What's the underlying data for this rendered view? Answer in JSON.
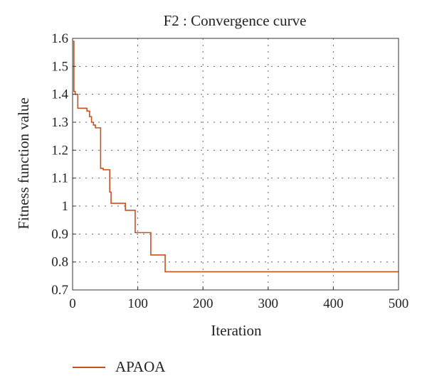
{
  "chart_data": {
    "type": "line",
    "title": "F2 : Convergence curve",
    "xlabel": "Iteration",
    "ylabel": "Fitness function value",
    "xlim": [
      0,
      500
    ],
    "ylim": [
      0.7,
      1.6
    ],
    "xticks": [
      0,
      100,
      200,
      300,
      400,
      500
    ],
    "yticks": [
      0.7,
      0.8,
      0.9,
      1,
      1.1,
      1.2,
      1.3,
      1.4,
      1.5,
      1.6
    ],
    "ytick_labels": [
      "0.7",
      "0.8",
      "0.9",
      "1",
      "1.1",
      "1.2",
      "1.3",
      "1.4",
      "1.5",
      "1.6"
    ],
    "grid": true,
    "legend_position": "bottom-left",
    "series": [
      {
        "name": "APAOA",
        "color": "#c8501e",
        "step": true,
        "x": [
          1,
          2,
          4,
          8,
          22,
          26,
          29,
          32,
          35,
          43,
          47,
          57,
          59,
          62,
          81,
          96,
          120,
          142,
          500
        ],
        "y": [
          1.59,
          1.41,
          1.4,
          1.35,
          1.34,
          1.32,
          1.3,
          1.29,
          1.28,
          1.135,
          1.13,
          1.05,
          1.01,
          1.01,
          0.985,
          0.905,
          0.825,
          0.765,
          0.765
        ]
      }
    ]
  }
}
